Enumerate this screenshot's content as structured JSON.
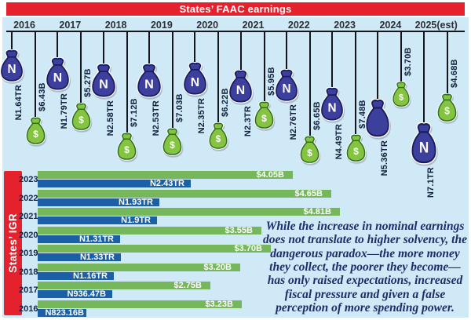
{
  "title": "States’ FAAC earnings",
  "note": "While the increase in nominal earnings does not translate to higher solvency, the dangerous paradox—the more money they collect, the poorer they become—has only raised expectations, increased fiscal pressure and given a false perception of more spending power.",
  "colors": {
    "background": "#cfe9f6",
    "banner_red": "#e6212e",
    "bar_blue": "#1b5fa6",
    "bar_green": "#77b75c",
    "bag_blue_fill": "#3d3f9d",
    "bag_blue_stroke": "#1a1c60",
    "bag_green_fill": "#84c440",
    "bag_green_stroke": "#2f6d22",
    "string_black": "#15151b",
    "note_navy": "#1d2d69"
  },
  "faac": {
    "years": [
      {
        "year": "2016",
        "naira": "N1.64TR",
        "dollar": "$6.43B",
        "n_letter": "N",
        "n_drop": 22,
        "d_drop": 108,
        "nw": 34,
        "nh": 42,
        "dw": 29,
        "dh": 36
      },
      {
        "year": "2017",
        "naira": "N1.79TR",
        "dollar": "$5.27B",
        "n_letter": "N",
        "n_drop": 32,
        "d_drop": 90,
        "nw": 35,
        "nh": 43,
        "dw": 29,
        "dh": 36
      },
      {
        "year": "2018",
        "naira": "N2.58TR",
        "dollar": "$7.12B",
        "n_letter": "N",
        "n_drop": 40,
        "d_drop": 128,
        "nw": 36,
        "nh": 44,
        "dw": 29,
        "dh": 36
      },
      {
        "year": "2019",
        "naira": "N2.53TR",
        "dollar": "$7.03B",
        "n_letter": "N",
        "n_drop": 40,
        "d_drop": 122,
        "nw": 36,
        "nh": 44,
        "dw": 29,
        "dh": 36
      },
      {
        "year": "2020",
        "naira": "N2.35TR",
        "dollar": "$6.22B",
        "n_letter": "N",
        "n_drop": 38,
        "d_drop": 115,
        "nw": 35,
        "nh": 43,
        "dw": 28,
        "dh": 35
      },
      {
        "year": "2021",
        "naira": "N2.3TR",
        "dollar": "$5.95B",
        "n_letter": "N",
        "n_drop": 48,
        "d_drop": 88,
        "nw": 35,
        "nh": 43,
        "dw": 29,
        "dh": 36
      },
      {
        "year": "2022",
        "naira": "N2.76TR",
        "dollar": "$6.65B",
        "n_letter": "N",
        "n_drop": 47,
        "d_drop": 132,
        "nw": 34,
        "nh": 42,
        "dw": 29,
        "dh": 36
      },
      {
        "year": "2023",
        "naira": "N4.49TR",
        "dollar": "$7.48B",
        "n_letter": "N",
        "n_drop": 70,
        "d_drop": 130,
        "nw": 34,
        "nh": 44,
        "dw": 29,
        "dh": 36
      },
      {
        "year": "2024",
        "naira": "N5.36TR",
        "dollar": "$3.70B",
        "n_letter": "",
        "n_drop": 85,
        "d_drop": 63,
        "nw": 36,
        "nh": 50,
        "dw": 26,
        "dh": 33
      },
      {
        "year": "2025(est)",
        "naira": "N7.1TR",
        "dollar": "$4.68B",
        "n_letter": "N",
        "n_drop": 115,
        "d_drop": 78,
        "nw": 38,
        "nh": 54,
        "dw": 29,
        "dh": 37
      }
    ]
  },
  "igr": {
    "label": "States’ IGR",
    "rows": [
      {
        "year": "2023",
        "naira": "N2.43TR",
        "dollar": "$4.05B",
        "n_w": 195,
        "d_w": 325
      },
      {
        "year": "2022",
        "naira": "N1.93TR",
        "dollar": "$4.65B",
        "n_w": 155,
        "d_w": 374
      },
      {
        "year": "2021",
        "naira": "N1.9TR",
        "dollar": "$4.81B",
        "n_w": 152,
        "d_w": 385
      },
      {
        "year": "2020",
        "naira": "N1.31TR",
        "dollar": "$3.55B",
        "n_w": 105,
        "d_w": 285
      },
      {
        "year": "2019",
        "naira": "N1.33TR",
        "dollar": "$3.70B",
        "n_w": 106,
        "d_w": 297
      },
      {
        "year": "2018",
        "naira": "N1.16TR",
        "dollar": "$3.20B",
        "n_w": 97,
        "d_w": 258
      },
      {
        "year": "2017",
        "naira": "N936.47B",
        "dollar": "$2.75B",
        "n_w": 95,
        "d_w": 220
      },
      {
        "year": "2016",
        "naira": "N823.16B",
        "dollar": "$3.23B",
        "n_w": 62,
        "d_w": 260
      }
    ]
  },
  "chart_data": [
    {
      "type": "bar",
      "style": "pictogram (hanging money bags on a year timeline)",
      "title": "States’ FAAC earnings",
      "categories": [
        "2016",
        "2017",
        "2018",
        "2019",
        "2020",
        "2021",
        "2022",
        "2023",
        "2024",
        "2025(est)"
      ],
      "series": [
        {
          "name": "Naira earnings (trillion N)",
          "values": [
            1.64,
            1.79,
            2.58,
            2.53,
            2.35,
            2.3,
            2.76,
            4.49,
            5.36,
            7.1
          ]
        },
        {
          "name": "Dollar equivalent ($B)",
          "values": [
            6.43,
            5.27,
            7.12,
            7.03,
            6.22,
            5.95,
            6.65,
            7.48,
            3.7,
            4.68
          ]
        }
      ],
      "legend_position": "none",
      "grid": false
    },
    {
      "type": "bar",
      "orientation": "horizontal",
      "title": "States’ IGR",
      "categories": [
        "2023",
        "2022",
        "2021",
        "2020",
        "2019",
        "2018",
        "2017",
        "2016"
      ],
      "series": [
        {
          "name": "Dollar equivalent ($B)",
          "values": [
            4.05,
            4.65,
            4.81,
            3.55,
            3.7,
            3.2,
            2.75,
            3.23
          ]
        },
        {
          "name": "Naira IGR",
          "values": [
            "N2.43TR",
            "N1.93TR",
            "N1.9TR",
            "N1.31TR",
            "N1.33TR",
            "N1.16TR",
            "N936.47B",
            "N823.16B"
          ]
        }
      ],
      "legend_position": "none",
      "grid": false
    }
  ]
}
